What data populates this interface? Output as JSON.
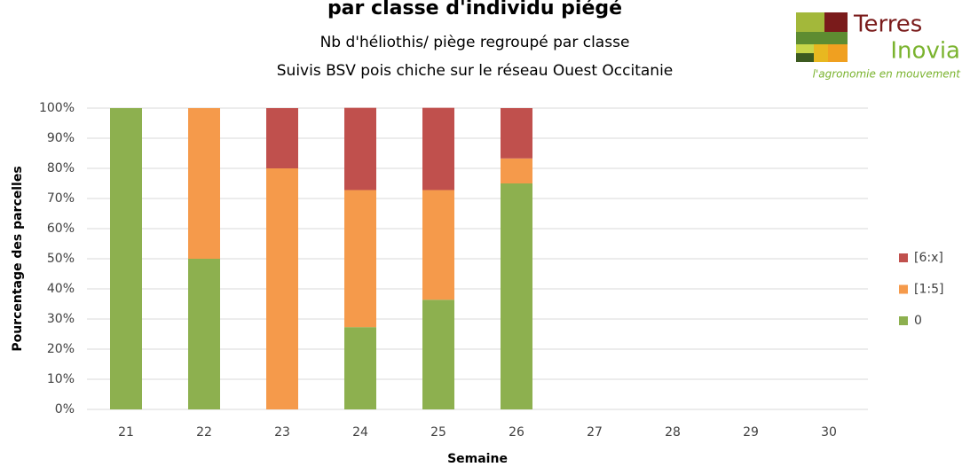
{
  "chart_data": {
    "type": "bar",
    "stacked": true,
    "title": "par classe d'individu piégé",
    "subtitle": [
      "Nb d'héliothis/ piège regroupé par classe",
      "Suivis BSV pois chiche sur le réseau Ouest Occitanie"
    ],
    "ylabel": "Pourcentage des parcelles",
    "xlabel": "Semaine",
    "categories": [
      "21",
      "22",
      "23",
      "24",
      "25",
      "26",
      "27",
      "28",
      "29",
      "30"
    ],
    "series": [
      {
        "name": "0",
        "color": "#8db04f",
        "values": [
          100,
          50,
          0,
          27.3,
          36.4,
          75,
          null,
          null,
          null,
          null
        ]
      },
      {
        "name": "[1:5]",
        "color": "#f59a4b",
        "values": [
          0,
          50,
          80,
          45.5,
          36.4,
          8.3,
          null,
          null,
          null,
          null
        ]
      },
      {
        "name": "[6:x]",
        "color": "#c0504d",
        "values": [
          0,
          0,
          20,
          27.3,
          27.3,
          16.7,
          null,
          null,
          null,
          null
        ]
      }
    ],
    "ylim": [
      0,
      100
    ],
    "yticks": [
      {
        "value": 0,
        "label": "0%"
      },
      {
        "value": 10,
        "label": "10%"
      },
      {
        "value": 20,
        "label": "20%"
      },
      {
        "value": 30,
        "label": "30%"
      },
      {
        "value": 40,
        "label": "40%"
      },
      {
        "value": 50,
        "label": "50%"
      },
      {
        "value": 60,
        "label": "60%"
      },
      {
        "value": 70,
        "label": "70%"
      },
      {
        "value": 80,
        "label": "80%"
      },
      {
        "value": 90,
        "label": "90%"
      },
      {
        "value": 100,
        "label": "100%"
      }
    ],
    "grid": true,
    "legend": "right"
  },
  "logo": {
    "name": [
      "Terres",
      "Inovia"
    ],
    "tagline": "l'agronomie en mouvement"
  }
}
